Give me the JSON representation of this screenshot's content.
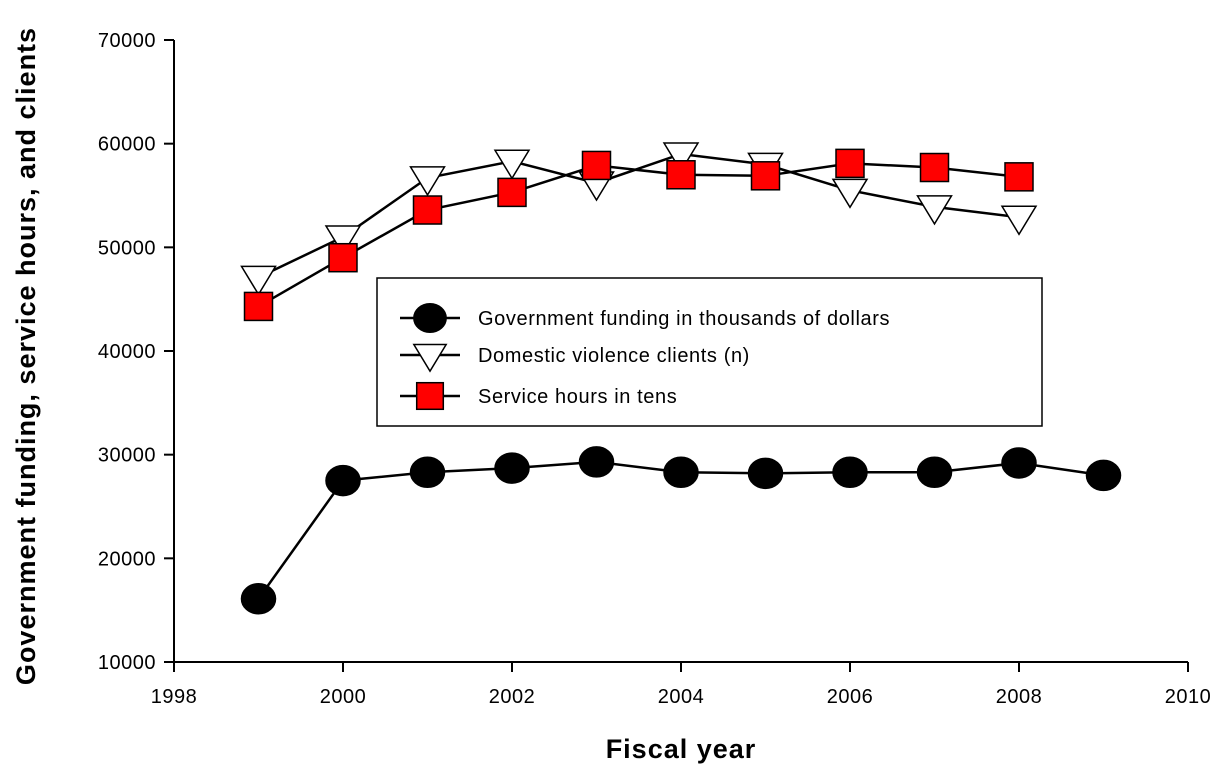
{
  "chart_data": {
    "type": "line",
    "xlabel": "Fiscal year",
    "ylabel": "Government funding,  service hours, and clients",
    "xlim": [
      1998,
      2010
    ],
    "ylim": [
      10000,
      70000
    ],
    "xticks": [
      1998,
      2000,
      2002,
      2004,
      2006,
      2008,
      2010
    ],
    "yticks": [
      10000,
      20000,
      30000,
      40000,
      50000,
      60000,
      70000
    ],
    "grid": false,
    "legend_position": "center",
    "series": [
      {
        "name": "Government funding in thousands of dollars",
        "marker": "circle",
        "color": "#000000",
        "x": [
          1999,
          2000,
          2001,
          2002,
          2003,
          2004,
          2005,
          2006,
          2007,
          2008,
          2009
        ],
        "y": [
          16100,
          27500,
          28300,
          28700,
          29300,
          28300,
          28200,
          28300,
          28300,
          29200,
          28000
        ]
      },
      {
        "name": "Domestic violence clients (n)",
        "marker": "triangle-down",
        "color": "#ffffff",
        "x": [
          1999,
          2000,
          2001,
          2002,
          2003,
          2004,
          2005,
          2006,
          2007,
          2008
        ],
        "y": [
          47100,
          51000,
          56700,
          58300,
          56200,
          59000,
          58000,
          55500,
          53900,
          52900
        ]
      },
      {
        "name": "Service hours in tens",
        "marker": "square",
        "color": "#ff0000",
        "x": [
          1999,
          2000,
          2001,
          2002,
          2003,
          2004,
          2005,
          2006,
          2007,
          2008
        ],
        "y": [
          44300,
          49000,
          53600,
          55300,
          57900,
          57000,
          56900,
          58100,
          57700,
          56800
        ]
      }
    ]
  }
}
